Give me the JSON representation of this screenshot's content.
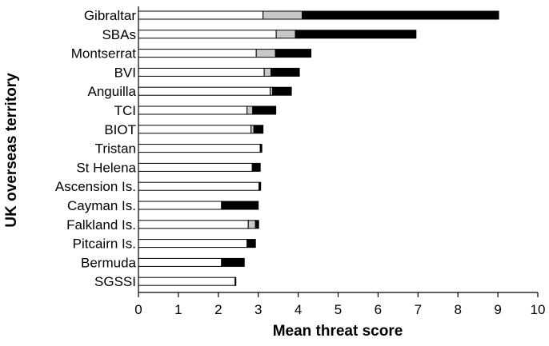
{
  "chart_data": {
    "type": "bar",
    "orientation": "horizontal",
    "stacked": true,
    "xlabel": "Mean threat score",
    "ylabel": "UK overseas territory",
    "xlim": [
      0,
      10
    ],
    "xticks": [
      "0",
      "1",
      "2",
      "3",
      "4",
      "5",
      "6",
      "7",
      "8",
      "9",
      "10"
    ],
    "grid": false,
    "legend": "none",
    "categories": [
      "Gibraltar",
      "SBAs",
      "Montserrat",
      "BVI",
      "Anguilla",
      "TCI",
      "BIOT",
      "Tristan",
      "St Helena",
      "Ascension Is.",
      "Cayman Is.",
      "Falkland Is.",
      "Pitcairn Is.",
      "Bermuda",
      "SGSSI"
    ],
    "series": [
      {
        "color": "#ffffff",
        "values": [
          3.12,
          3.45,
          2.95,
          3.15,
          3.3,
          2.72,
          2.82,
          3.05,
          2.85,
          3.02,
          2.08,
          2.75,
          2.72,
          2.08,
          2.42
        ]
      },
      {
        "color": "#c8c8c8",
        "values": [
          0.98,
          0.48,
          0.48,
          0.17,
          0.06,
          0.14,
          0.07,
          0.0,
          0.0,
          0.0,
          0.0,
          0.18,
          0.0,
          0.0,
          0.0
        ]
      },
      {
        "color": "#000000",
        "values": [
          4.92,
          3.02,
          0.89,
          0.71,
          0.47,
          0.58,
          0.23,
          0.04,
          0.2,
          0.04,
          0.92,
          0.08,
          0.21,
          0.57,
          0.02
        ]
      }
    ]
  }
}
